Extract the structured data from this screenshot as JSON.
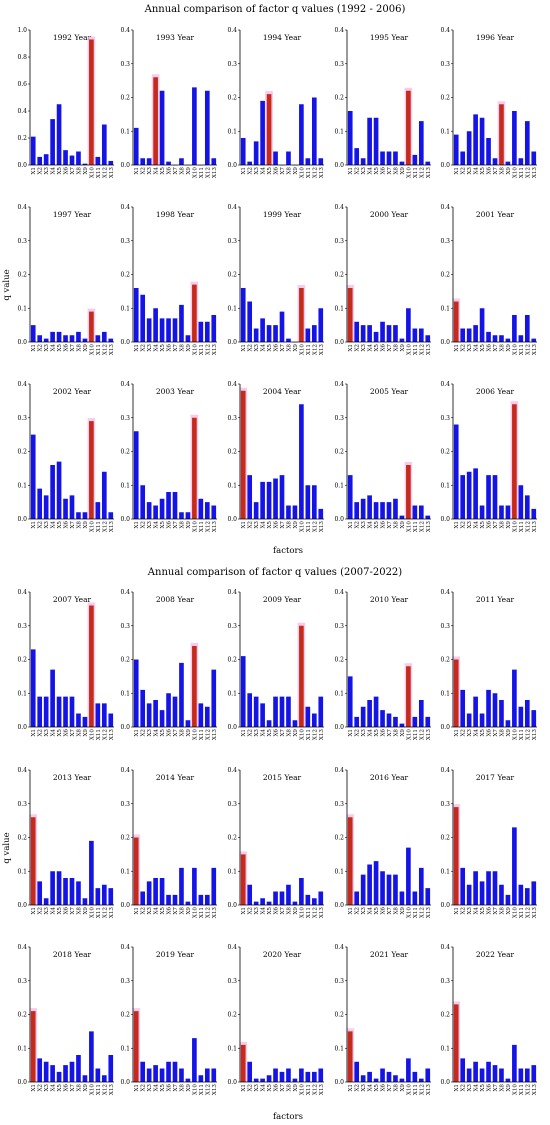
{
  "sections": [
    {
      "title": "Annual comparison of factor q values (1992 - 2006)",
      "ylabel": "q value",
      "xlabel": "factors"
    },
    {
      "title": "Annual comparison of factor q values (2007-2022)",
      "ylabel": "q value",
      "xlabel": "factors"
    }
  ],
  "colors": {
    "bar": "#1414e6",
    "highlight": "#c62a1a",
    "highlight_glow": "#f5b8e6"
  },
  "chart_data": [
    {
      "type": "bar",
      "title": "1992 Year",
      "categories": [
        "X1",
        "X2",
        "X3",
        "X4",
        "X5",
        "X6",
        "X7",
        "X8",
        "X9",
        "X10",
        "X11",
        "X12",
        "X13"
      ],
      "values": [
        0.21,
        0.06,
        0.08,
        0.34,
        0.45,
        0.11,
        0.07,
        0.1,
        0.01,
        0.93,
        0.06,
        0.3,
        0.03
      ],
      "highlight": 9,
      "ylim": [
        0,
        1.0
      ],
      "yticks": [
        0,
        0.2,
        0.4,
        0.6,
        0.8,
        1.0
      ]
    },
    {
      "type": "bar",
      "title": "1993 Year",
      "categories": [
        "X1",
        "X2",
        "X3",
        "X4",
        "X5",
        "X6",
        "X7",
        "X8",
        "X9",
        "X10",
        "X11",
        "X12",
        "X13"
      ],
      "values": [
        0.11,
        0.02,
        0.02,
        0.26,
        0.22,
        0.01,
        0.0,
        0.02,
        0.0,
        0.23,
        0.0,
        0.22,
        0.02
      ],
      "highlight": 3,
      "ylim": [
        0,
        0.4
      ],
      "yticks": [
        0,
        0.1,
        0.2,
        0.3,
        0.4
      ]
    },
    {
      "type": "bar",
      "title": "1994 Year",
      "categories": [
        "X1",
        "X2",
        "X3",
        "X4",
        "X5",
        "X6",
        "X7",
        "X8",
        "X9",
        "X10",
        "X11",
        "X12",
        "X13"
      ],
      "values": [
        0.08,
        0.01,
        0.07,
        0.19,
        0.21,
        0.04,
        0.0,
        0.04,
        0.0,
        0.18,
        0.02,
        0.2,
        0.02
      ],
      "highlight": 4,
      "ylim": [
        0,
        0.4
      ],
      "yticks": [
        0,
        0.1,
        0.2,
        0.3,
        0.4
      ]
    },
    {
      "type": "bar",
      "title": "1995 Year",
      "categories": [
        "X1",
        "X2",
        "X3",
        "X4",
        "X5",
        "X6",
        "X7",
        "X8",
        "X9",
        "X10",
        "X11",
        "X12",
        "X13"
      ],
      "values": [
        0.16,
        0.05,
        0.02,
        0.14,
        0.14,
        0.04,
        0.04,
        0.04,
        0.01,
        0.22,
        0.03,
        0.13,
        0.01
      ],
      "highlight": 9,
      "ylim": [
        0,
        0.4
      ],
      "yticks": [
        0,
        0.1,
        0.2,
        0.3,
        0.4
      ]
    },
    {
      "type": "bar",
      "title": "1996 Year",
      "categories": [
        "X1",
        "X2",
        "X3",
        "X4",
        "X5",
        "X6",
        "X7",
        "X8",
        "X9",
        "X10",
        "X11",
        "X12",
        "X13"
      ],
      "values": [
        0.09,
        0.04,
        0.1,
        0.15,
        0.14,
        0.08,
        0.02,
        0.18,
        0.01,
        0.16,
        0.02,
        0.13,
        0.04
      ],
      "highlight": 7,
      "ylim": [
        0,
        0.4
      ],
      "yticks": [
        0,
        0.1,
        0.2,
        0.3,
        0.4
      ]
    },
    {
      "type": "bar",
      "title": "1997 Year",
      "categories": [
        "X1",
        "X2",
        "X3",
        "X4",
        "X5",
        "X6",
        "X7",
        "X8",
        "X9",
        "X10",
        "X11",
        "X12",
        "X13"
      ],
      "values": [
        0.05,
        0.02,
        0.01,
        0.03,
        0.03,
        0.02,
        0.02,
        0.03,
        0.01,
        0.09,
        0.02,
        0.03,
        0.01
      ],
      "highlight": 9,
      "ylim": [
        0,
        0.4
      ],
      "yticks": [
        0,
        0.1,
        0.2,
        0.3,
        0.4
      ]
    },
    {
      "type": "bar",
      "title": "1998 Year",
      "categories": [
        "X1",
        "X2",
        "X3",
        "X4",
        "X5",
        "X6",
        "X7",
        "X8",
        "X9",
        "X10",
        "X11",
        "X12",
        "X13"
      ],
      "values": [
        0.16,
        0.14,
        0.07,
        0.1,
        0.07,
        0.07,
        0.07,
        0.11,
        0.02,
        0.17,
        0.06,
        0.06,
        0.08
      ],
      "highlight": 9,
      "ylim": [
        0,
        0.4
      ],
      "yticks": [
        0,
        0.1,
        0.2,
        0.3,
        0.4
      ]
    },
    {
      "type": "bar",
      "title": "1999 Year",
      "categories": [
        "X1",
        "X2",
        "X3",
        "X4",
        "X5",
        "X6",
        "X7",
        "X8",
        "X9",
        "X10",
        "X11",
        "X12",
        "X13"
      ],
      "values": [
        0.16,
        0.12,
        0.04,
        0.07,
        0.05,
        0.05,
        0.09,
        0.01,
        0.0,
        0.16,
        0.04,
        0.05,
        0.1
      ],
      "highlight": 9,
      "ylim": [
        0,
        0.4
      ],
      "yticks": [
        0,
        0.1,
        0.2,
        0.3,
        0.4
      ]
    },
    {
      "type": "bar",
      "title": "2000 Year",
      "categories": [
        "X1",
        "X2",
        "X3",
        "X4",
        "X5",
        "X6",
        "X7",
        "X8",
        "X9",
        "X10",
        "X11",
        "X12",
        "X13"
      ],
      "values": [
        0.16,
        0.06,
        0.05,
        0.05,
        0.03,
        0.06,
        0.05,
        0.05,
        0.01,
        0.1,
        0.04,
        0.04,
        0.02
      ],
      "highlight": 0,
      "ylim": [
        0,
        0.4
      ],
      "yticks": [
        0,
        0.1,
        0.2,
        0.3,
        0.4
      ]
    },
    {
      "type": "bar",
      "title": "2001 Year",
      "categories": [
        "X1",
        "X2",
        "X3",
        "X4",
        "X5",
        "X6",
        "X7",
        "X8",
        "X9",
        "X10",
        "X11",
        "X12",
        "X13"
      ],
      "values": [
        0.12,
        0.04,
        0.04,
        0.05,
        0.1,
        0.03,
        0.02,
        0.02,
        0.01,
        0.08,
        0.02,
        0.08,
        0.01
      ],
      "highlight": 0,
      "ylim": [
        0,
        0.4
      ],
      "yticks": [
        0,
        0.1,
        0.2,
        0.3,
        0.4
      ]
    },
    {
      "type": "bar",
      "title": "2002 Year",
      "categories": [
        "X1",
        "X2",
        "X3",
        "X4",
        "X5",
        "X6",
        "X7",
        "X8",
        "X9",
        "X10",
        "X11",
        "X12",
        "X13"
      ],
      "values": [
        0.25,
        0.09,
        0.07,
        0.16,
        0.17,
        0.06,
        0.07,
        0.02,
        0.02,
        0.29,
        0.05,
        0.14,
        0.02
      ],
      "highlight": 9,
      "ylim": [
        0,
        0.4
      ],
      "yticks": [
        0,
        0.1,
        0.2,
        0.3,
        0.4
      ]
    },
    {
      "type": "bar",
      "title": "2003 Year",
      "categories": [
        "X1",
        "X2",
        "X3",
        "X4",
        "X5",
        "X6",
        "X7",
        "X8",
        "X9",
        "X10",
        "X11",
        "X12",
        "X13"
      ],
      "values": [
        0.26,
        0.1,
        0.05,
        0.04,
        0.06,
        0.08,
        0.08,
        0.02,
        0.02,
        0.3,
        0.06,
        0.05,
        0.04
      ],
      "highlight": 9,
      "ylim": [
        0,
        0.4
      ],
      "yticks": [
        0,
        0.1,
        0.2,
        0.3,
        0.4
      ]
    },
    {
      "type": "bar",
      "title": "2004 Year",
      "categories": [
        "X1",
        "X2",
        "X3",
        "X4",
        "X5",
        "X6",
        "X7",
        "X8",
        "X9",
        "X10",
        "X11",
        "X12",
        "X13"
      ],
      "values": [
        0.38,
        0.13,
        0.05,
        0.11,
        0.11,
        0.12,
        0.13,
        0.04,
        0.04,
        0.34,
        0.1,
        0.1,
        0.03
      ],
      "highlight": 0,
      "ylim": [
        0,
        0.4
      ],
      "yticks": [
        0,
        0.1,
        0.2,
        0.3,
        0.4
      ]
    },
    {
      "type": "bar",
      "title": "2005 Year",
      "categories": [
        "X1",
        "X2",
        "X3",
        "X4",
        "X5",
        "X6",
        "X7",
        "X8",
        "X9",
        "X10",
        "X11",
        "X12",
        "X13"
      ],
      "values": [
        0.13,
        0.05,
        0.06,
        0.07,
        0.05,
        0.05,
        0.05,
        0.06,
        0.01,
        0.16,
        0.04,
        0.04,
        0.01
      ],
      "highlight": 9,
      "ylim": [
        0,
        0.4
      ],
      "yticks": [
        0,
        0.1,
        0.2,
        0.3,
        0.4
      ]
    },
    {
      "type": "bar",
      "title": "2006 Year",
      "categories": [
        "X1",
        "X2",
        "X3",
        "X4",
        "X5",
        "X6",
        "X7",
        "X8",
        "X9",
        "X10",
        "X11",
        "X12",
        "X13"
      ],
      "values": [
        0.28,
        0.13,
        0.14,
        0.15,
        0.04,
        0.13,
        0.13,
        0.04,
        0.04,
        0.34,
        0.1,
        0.07,
        0.03
      ],
      "highlight": 9,
      "ylim": [
        0,
        0.4
      ],
      "yticks": [
        0,
        0.1,
        0.2,
        0.3,
        0.4
      ]
    },
    {
      "type": "bar",
      "title": "2007 Year",
      "categories": [
        "X1",
        "X2",
        "X3",
        "X4",
        "X5",
        "X6",
        "X7",
        "X8",
        "X9",
        "X10",
        "X11",
        "X12",
        "X13"
      ],
      "values": [
        0.23,
        0.09,
        0.09,
        0.17,
        0.09,
        0.09,
        0.09,
        0.04,
        0.03,
        0.36,
        0.07,
        0.07,
        0.04
      ],
      "highlight": 9,
      "ylim": [
        0,
        0.4
      ],
      "yticks": [
        0,
        0.1,
        0.2,
        0.3,
        0.4
      ]
    },
    {
      "type": "bar",
      "title": "2008 Year",
      "categories": [
        "X1",
        "X2",
        "X3",
        "X4",
        "X5",
        "X6",
        "X7",
        "X8",
        "X9",
        "X10",
        "X11",
        "X12",
        "X13"
      ],
      "values": [
        0.2,
        0.11,
        0.07,
        0.08,
        0.05,
        0.1,
        0.09,
        0.19,
        0.02,
        0.24,
        0.07,
        0.06,
        0.17
      ],
      "highlight": 9,
      "ylim": [
        0,
        0.4
      ],
      "yticks": [
        0,
        0.1,
        0.2,
        0.3,
        0.4
      ]
    },
    {
      "type": "bar",
      "title": "2009 Year",
      "categories": [
        "X1",
        "X2",
        "X3",
        "X4",
        "X5",
        "X6",
        "X7",
        "X8",
        "X9",
        "X10",
        "X11",
        "X12",
        "X13"
      ],
      "values": [
        0.21,
        0.1,
        0.09,
        0.07,
        0.02,
        0.09,
        0.09,
        0.09,
        0.02,
        0.3,
        0.06,
        0.04,
        0.09
      ],
      "highlight": 9,
      "ylim": [
        0,
        0.4
      ],
      "yticks": [
        0,
        0.1,
        0.2,
        0.3,
        0.4
      ]
    },
    {
      "type": "bar",
      "title": "2010 Year",
      "categories": [
        "X1",
        "X2",
        "X3",
        "X4",
        "X5",
        "X6",
        "X7",
        "X8",
        "X9",
        "X10",
        "X11",
        "X12",
        "X13"
      ],
      "values": [
        0.15,
        0.03,
        0.06,
        0.08,
        0.09,
        0.05,
        0.04,
        0.03,
        0.01,
        0.18,
        0.03,
        0.08,
        0.03
      ],
      "highlight": 9,
      "ylim": [
        0,
        0.4
      ],
      "yticks": [
        0,
        0.1,
        0.2,
        0.3,
        0.4
      ]
    },
    {
      "type": "bar",
      "title": "2011 Year",
      "categories": [
        "X1",
        "X2",
        "X3",
        "X4",
        "X5",
        "X6",
        "X7",
        "X8",
        "X9",
        "X10",
        "X11",
        "X12",
        "X13"
      ],
      "values": [
        0.2,
        0.11,
        0.04,
        0.09,
        0.04,
        0.11,
        0.1,
        0.08,
        0.02,
        0.17,
        0.06,
        0.08,
        0.05
      ],
      "highlight": 0,
      "ylim": [
        0,
        0.4
      ],
      "yticks": [
        0,
        0.1,
        0.2,
        0.3,
        0.4
      ]
    },
    {
      "type": "bar",
      "title": "2013 Year",
      "categories": [
        "X1",
        "X2",
        "X3",
        "X4",
        "X5",
        "X6",
        "X7",
        "X8",
        "X9",
        "X10",
        "X11",
        "X12",
        "X13"
      ],
      "values": [
        0.26,
        0.07,
        0.02,
        0.1,
        0.1,
        0.08,
        0.08,
        0.07,
        0.02,
        0.19,
        0.05,
        0.06,
        0.05
      ],
      "highlight": 0,
      "ylim": [
        0,
        0.4
      ],
      "yticks": [
        0,
        0.1,
        0.2,
        0.3,
        0.4
      ]
    },
    {
      "type": "bar",
      "title": "2014 Year",
      "categories": [
        "X1",
        "X2",
        "X3",
        "X4",
        "X5",
        "X6",
        "X7",
        "X8",
        "X9",
        "X10",
        "X11",
        "X12",
        "X13"
      ],
      "values": [
        0.2,
        0.04,
        0.07,
        0.08,
        0.08,
        0.03,
        0.03,
        0.11,
        0.01,
        0.11,
        0.03,
        0.03,
        0.11
      ],
      "highlight": 0,
      "ylim": [
        0,
        0.4
      ],
      "yticks": [
        0,
        0.1,
        0.2,
        0.3,
        0.4
      ]
    },
    {
      "type": "bar",
      "title": "2015 Year",
      "categories": [
        "X1",
        "X2",
        "X3",
        "X4",
        "X5",
        "X6",
        "X7",
        "X8",
        "X9",
        "X10",
        "X11",
        "X12",
        "X13"
      ],
      "values": [
        0.15,
        0.06,
        0.01,
        0.02,
        0.01,
        0.04,
        0.04,
        0.06,
        0.01,
        0.08,
        0.03,
        0.02,
        0.04
      ],
      "highlight": 0,
      "ylim": [
        0,
        0.4
      ],
      "yticks": [
        0,
        0.1,
        0.2,
        0.3,
        0.4
      ]
    },
    {
      "type": "bar",
      "title": "2016 Year",
      "categories": [
        "X1",
        "X2",
        "X3",
        "X4",
        "X5",
        "X6",
        "X7",
        "X8",
        "X9",
        "X10",
        "X11",
        "X12",
        "X13"
      ],
      "values": [
        0.26,
        0.04,
        0.09,
        0.12,
        0.13,
        0.1,
        0.09,
        0.09,
        0.04,
        0.17,
        0.04,
        0.11,
        0.05
      ],
      "highlight": 0,
      "ylim": [
        0,
        0.4
      ],
      "yticks": [
        0,
        0.1,
        0.2,
        0.3,
        0.4
      ]
    },
    {
      "type": "bar",
      "title": "2017 Year",
      "categories": [
        "X1",
        "X2",
        "X3",
        "X4",
        "X5",
        "X6",
        "X7",
        "X8",
        "X9",
        "X10",
        "X11",
        "X12",
        "X13"
      ],
      "values": [
        0.29,
        0.11,
        0.06,
        0.1,
        0.07,
        0.1,
        0.1,
        0.06,
        0.03,
        0.23,
        0.06,
        0.05,
        0.07
      ],
      "highlight": 0,
      "ylim": [
        0,
        0.4
      ],
      "yticks": [
        0,
        0.1,
        0.2,
        0.3,
        0.4
      ]
    },
    {
      "type": "bar",
      "title": "2018 Year",
      "categories": [
        "X1",
        "X2",
        "X3",
        "X4",
        "X5",
        "X6",
        "X7",
        "X8",
        "X9",
        "X10",
        "X11",
        "X12",
        "X13"
      ],
      "values": [
        0.21,
        0.07,
        0.06,
        0.05,
        0.03,
        0.05,
        0.06,
        0.08,
        0.02,
        0.15,
        0.04,
        0.02,
        0.08
      ],
      "highlight": 0,
      "ylim": [
        0,
        0.4
      ],
      "yticks": [
        0,
        0.1,
        0.2,
        0.3,
        0.4
      ]
    },
    {
      "type": "bar",
      "title": "2019 Year",
      "categories": [
        "X1",
        "X2",
        "X3",
        "X4",
        "X5",
        "X6",
        "X7",
        "X8",
        "X9",
        "X10",
        "X11",
        "X12",
        "X13"
      ],
      "values": [
        0.21,
        0.06,
        0.04,
        0.05,
        0.04,
        0.06,
        0.06,
        0.04,
        0.01,
        0.13,
        0.02,
        0.04,
        0.04
      ],
      "highlight": 0,
      "ylim": [
        0,
        0.4
      ],
      "yticks": [
        0,
        0.1,
        0.2,
        0.3,
        0.4
      ]
    },
    {
      "type": "bar",
      "title": "2020 Year",
      "categories": [
        "X1",
        "X2",
        "X3",
        "X4",
        "X5",
        "X6",
        "X7",
        "X8",
        "X9",
        "X10",
        "X11",
        "X12",
        "X13"
      ],
      "values": [
        0.11,
        0.06,
        0.01,
        0.01,
        0.02,
        0.04,
        0.03,
        0.04,
        0.01,
        0.04,
        0.03,
        0.03,
        0.04
      ],
      "highlight": 0,
      "ylim": [
        0,
        0.4
      ],
      "yticks": [
        0,
        0.1,
        0.2,
        0.3,
        0.4
      ]
    },
    {
      "type": "bar",
      "title": "2021 Year",
      "categories": [
        "X1",
        "X2",
        "X3",
        "X4",
        "X5",
        "X6",
        "X7",
        "X8",
        "X9",
        "X10",
        "X11",
        "X12",
        "X13"
      ],
      "values": [
        0.15,
        0.06,
        0.02,
        0.03,
        0.01,
        0.04,
        0.03,
        0.02,
        0.01,
        0.07,
        0.03,
        0.01,
        0.04
      ],
      "highlight": 0,
      "ylim": [
        0,
        0.4
      ],
      "yticks": [
        0,
        0.1,
        0.2,
        0.3,
        0.4
      ]
    },
    {
      "type": "bar",
      "title": "2022 Year",
      "categories": [
        "X1",
        "X2",
        "X3",
        "X4",
        "X5",
        "X6",
        "X7",
        "X8",
        "X9",
        "X10",
        "X11",
        "X12",
        "X13"
      ],
      "values": [
        0.23,
        0.07,
        0.04,
        0.06,
        0.04,
        0.06,
        0.05,
        0.04,
        0.01,
        0.11,
        0.04,
        0.04,
        0.05
      ],
      "highlight": 0,
      "ylim": [
        0,
        0.4
      ],
      "yticks": [
        0,
        0.1,
        0.2,
        0.3,
        0.4
      ]
    }
  ]
}
